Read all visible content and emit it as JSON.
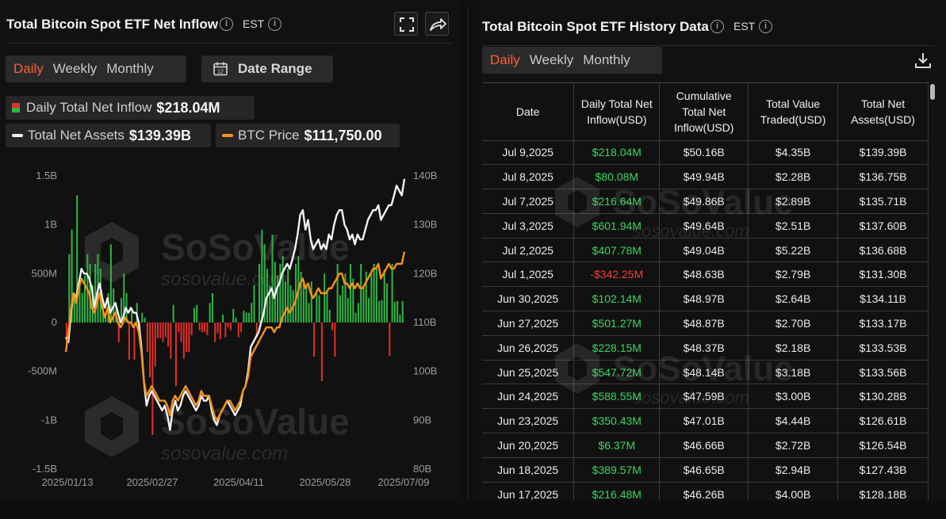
{
  "left": {
    "title": "Total Bitcoin Spot ETF Net Inflow",
    "timezone": "EST",
    "tabs": [
      "Daily",
      "Weekly",
      "Monthly"
    ],
    "active_tab": "Daily",
    "date_range_label": "Date Range",
    "legend": {
      "net_inflow_label": "Daily Total Net Inflow",
      "net_inflow_value": "$218.04M",
      "net_assets_label": "Total Net Assets",
      "net_assets_value": "$139.39B",
      "btc_label": "BTC Price",
      "btc_value": "$111,750.00"
    },
    "watermark": {
      "brand": "SoSoValue",
      "url": "sosovalue.com"
    }
  },
  "colors": {
    "accent": "#ff5b36",
    "inflow_pos": "#2fb344",
    "inflow_neg": "#e0302a",
    "net_assets_line": "#f2f2f2",
    "btc_line": "#f7931a"
  },
  "icons": [
    "info-icon",
    "fullscreen-icon",
    "share-icon",
    "calendar-icon",
    "download-icon"
  ],
  "chart_data": {
    "type": "bar+line",
    "y_left_ticks": [
      "1.5B",
      "1B",
      "500M",
      "0",
      "-500M",
      "-1B",
      "-1.5B"
    ],
    "y_left_range": [
      -1500,
      1500
    ],
    "y_right_ticks": [
      "140B",
      "130B",
      "120B",
      "110B",
      "100B",
      "90B",
      "80B"
    ],
    "y_right_range": [
      80,
      140
    ],
    "x_ticks": [
      "2025/01/13",
      "2025/02/27",
      "2025/04/11",
      "2025/05/28",
      "2025/07/09"
    ],
    "series": [
      {
        "name": "Daily Total Net Inflow",
        "kind": "bar",
        "unit": "M",
        "values": [
          -250,
          700,
          950,
          300,
          1300,
          400,
          300,
          480,
          700,
          600,
          380,
          600,
          700,
          550,
          200,
          50,
          300,
          800,
          350,
          200,
          -200,
          250,
          500,
          300,
          -380,
          150,
          -380,
          200,
          -130,
          100,
          50,
          -300,
          -560,
          -1150,
          -450,
          -160,
          -160,
          -200,
          -150,
          -250,
          -370,
          180,
          -650,
          -100,
          -200,
          -370,
          -300,
          -300,
          -130,
          150,
          180,
          -80,
          -100,
          -100,
          -130,
          200,
          300,
          -200,
          -110,
          -170,
          80,
          -150,
          -50,
          -80,
          140,
          50,
          -150,
          -100,
          120,
          100,
          100,
          200,
          380,
          -150,
          600,
          950,
          800,
          550,
          380,
          900,
          620,
          480,
          600,
          680,
          420,
          550,
          380,
          330,
          600,
          680,
          520,
          400,
          380,
          200,
          420,
          -350,
          300,
          280,
          -600,
          500,
          330,
          130,
          -80,
          -350,
          600,
          280,
          380,
          500,
          250,
          600,
          450,
          100,
          200,
          600,
          350,
          520,
          250,
          500,
          600,
          550,
          220,
          230,
          540,
          400,
          -340,
          600,
          210,
          220,
          80,
          220
        ]
      },
      {
        "name": "Total Net Assets",
        "kind": "line",
        "unit": "B",
        "values": [
          107,
          106,
          112,
          116,
          115,
          118,
          121,
          120,
          120,
          119,
          117,
          113,
          116,
          118,
          115,
          113,
          115,
          112,
          113,
          114,
          112,
          110,
          111,
          113,
          112,
          113,
          112,
          112,
          110,
          105,
          98,
          93,
          95,
          96,
          95,
          94,
          93,
          92,
          93,
          91,
          88,
          92,
          94,
          92,
          93,
          95,
          96,
          95,
          94,
          93,
          92,
          93,
          95,
          94,
          94,
          95,
          92,
          90,
          89,
          91,
          92,
          93,
          94,
          93,
          92,
          91,
          92,
          93,
          96,
          97,
          100,
          105,
          106,
          107,
          108,
          110,
          112,
          115,
          116,
          117,
          115,
          117,
          118,
          120,
          121,
          122,
          121,
          123,
          125,
          128,
          132,
          133,
          129,
          131,
          127,
          125,
          126,
          127,
          125,
          126,
          125,
          128,
          127,
          130,
          132,
          133,
          133,
          130,
          129,
          127,
          128,
          126,
          128,
          127,
          127,
          129,
          131,
          132,
          133,
          133,
          134,
          131,
          132,
          133,
          134,
          134,
          136,
          138,
          137,
          136,
          139.39
        ]
      },
      {
        "name": "BTC Price",
        "kind": "line",
        "unit": "B",
        "values": [
          104,
          108,
          113,
          116,
          114,
          117,
          119,
          118,
          117,
          116,
          113,
          112,
          114,
          116,
          113,
          111,
          113,
          110,
          111,
          112,
          110,
          109,
          110,
          111,
          110,
          110,
          109,
          110,
          108,
          104,
          98,
          95,
          96,
          97,
          96,
          95,
          94,
          94,
          94,
          93,
          91,
          94,
          95,
          94,
          95,
          96,
          97,
          96,
          95,
          94,
          93,
          94,
          96,
          95,
          95,
          95,
          93,
          91,
          90,
          91,
          92,
          93,
          94,
          94,
          93,
          92,
          93,
          94,
          96,
          97,
          99,
          103,
          104,
          105,
          106,
          107,
          108,
          109,
          109,
          109,
          108,
          109,
          109,
          111,
          112,
          113,
          112,
          113,
          114,
          116,
          118,
          119,
          117,
          118,
          116,
          115,
          116,
          117,
          116,
          116,
          116,
          117,
          117,
          118,
          119,
          120,
          120,
          118,
          118,
          117,
          118,
          117,
          118,
          117,
          117,
          118,
          119,
          120,
          121,
          121,
          122,
          119,
          120,
          121,
          122,
          121,
          121,
          122,
          122,
          122,
          124.5
        ]
      }
    ]
  },
  "right": {
    "title": "Total Bitcoin Spot ETF History Data",
    "timezone": "EST",
    "tabs": [
      "Daily",
      "Weekly",
      "Monthly"
    ],
    "active_tab": "Daily",
    "columns": [
      "Date",
      "Daily Total Net Inflow(USD)",
      "Cumulative Total Net Inflow(USD)",
      "Total Value Traded(USD)",
      "Total Net Assets(USD)"
    ],
    "rows": [
      [
        "Jul 9,2025",
        "$218.04M",
        "$50.16B",
        "$4.35B",
        "$139.39B"
      ],
      [
        "Jul 8,2025",
        "$80.08M",
        "$49.94B",
        "$2.28B",
        "$136.75B"
      ],
      [
        "Jul 7,2025",
        "$216.64M",
        "$49.86B",
        "$2.89B",
        "$135.71B"
      ],
      [
        "Jul 3,2025",
        "$601.94M",
        "$49.64B",
        "$2.51B",
        "$137.60B"
      ],
      [
        "Jul 2,2025",
        "$407.78M",
        "$49.04B",
        "$5.22B",
        "$136.68B"
      ],
      [
        "Jul 1,2025",
        "-$342.25M",
        "$48.63B",
        "$2.79B",
        "$131.30B"
      ],
      [
        "Jun 30,2025",
        "$102.14M",
        "$48.97B",
        "$2.64B",
        "$134.11B"
      ],
      [
        "Jun 27,2025",
        "$501.27M",
        "$48.87B",
        "$2.70B",
        "$133.17B"
      ],
      [
        "Jun 26,2025",
        "$228.15M",
        "$48.37B",
        "$2.18B",
        "$133.53B"
      ],
      [
        "Jun 25,2025",
        "$547.72M",
        "$48.14B",
        "$3.18B",
        "$133.56B"
      ],
      [
        "Jun 24,2025",
        "$588.55M",
        "$47.59B",
        "$3.00B",
        "$130.28B"
      ],
      [
        "Jun 23,2025",
        "$350.43M",
        "$47.01B",
        "$4.44B",
        "$126.61B"
      ],
      [
        "Jun 20,2025",
        "$6.37M",
        "$46.66B",
        "$2.72B",
        "$126.54B"
      ],
      [
        "Jun 18,2025",
        "$389.57M",
        "$46.65B",
        "$2.94B",
        "$127.43B"
      ],
      [
        "Jun 17,2025",
        "$216.48M",
        "$46.26B",
        "$4.00B",
        "$128.18B"
      ]
    ]
  }
}
